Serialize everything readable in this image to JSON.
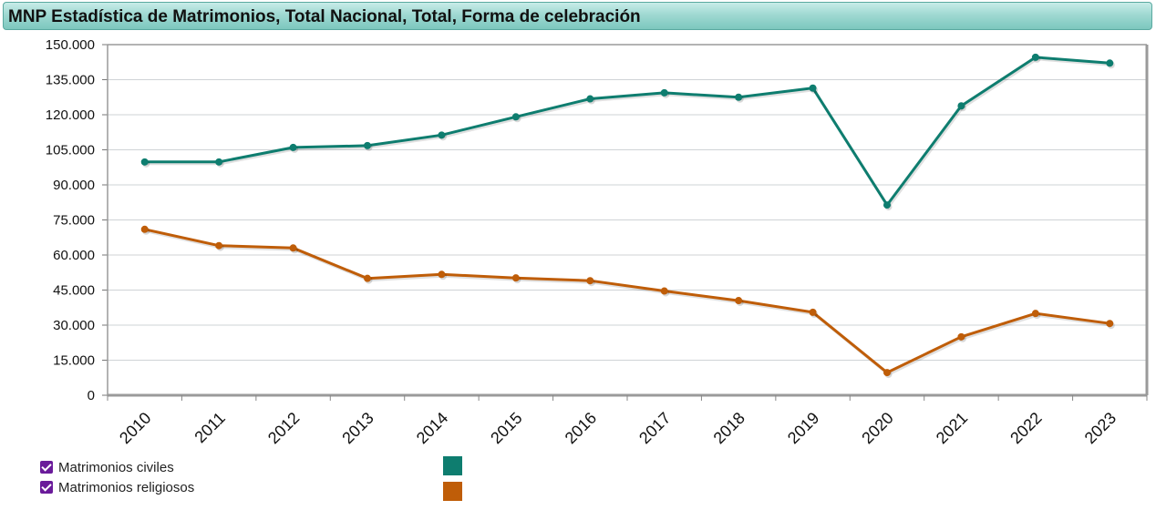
{
  "header": {
    "title": "MNP Estadística de Matrimonios, Total Nacional, Total, Forma de celebración"
  },
  "chart_data": {
    "type": "line",
    "title": "MNP Estadística de Matrimonios, Total Nacional, Total, Forma de celebración",
    "xlabel": "",
    "ylabel": "",
    "categories": [
      "2010",
      "2011",
      "2012",
      "2013",
      "2014",
      "2015",
      "2016",
      "2017",
      "2018",
      "2019",
      "2020",
      "2021",
      "2022",
      "2023"
    ],
    "ylim": [
      0,
      150000
    ],
    "yticks": [
      0,
      15000,
      30000,
      45000,
      60000,
      75000,
      90000,
      105000,
      120000,
      135000,
      150000
    ],
    "ytick_labels": [
      "0",
      "15.000",
      "30.000",
      "45.000",
      "60.000",
      "75.000",
      "90.000",
      "105.000",
      "120.000",
      "135.000",
      "150.000"
    ],
    "grid": true,
    "legend_position": "bottom-left",
    "series": [
      {
        "name": "Matrimonios civiles",
        "color": "#0e7d6f",
        "values": [
          99800,
          99800,
          106000,
          106800,
          111300,
          119100,
          126800,
          129400,
          127500,
          131400,
          81400,
          123800,
          144600,
          142100
        ]
      },
      {
        "name": "Matrimonios religiosos",
        "color": "#bf5d08",
        "values": [
          71000,
          64000,
          63000,
          50000,
          51700,
          50200,
          49000,
          44600,
          40500,
          35500,
          9700,
          25000,
          35000,
          30700
        ]
      }
    ]
  }
}
